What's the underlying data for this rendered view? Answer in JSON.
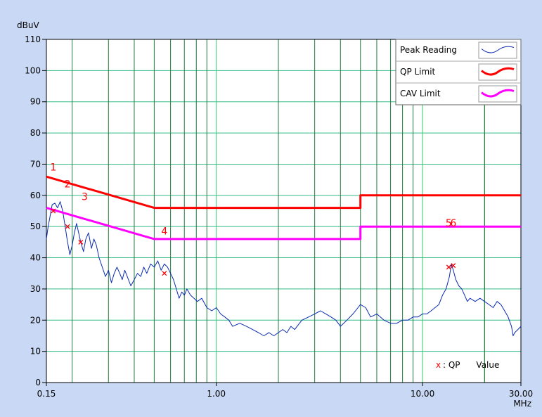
{
  "chart_data": {
    "type": "line",
    "ylabel": "dBuV",
    "xlabel": "MHz",
    "x_scale": "log",
    "xlim": [
      0.15,
      30
    ],
    "ylim": [
      0,
      110
    ],
    "yticks": [
      0,
      10,
      20,
      30,
      40,
      50,
      60,
      70,
      80,
      90,
      100,
      110
    ],
    "xtick_labels": [
      {
        "value": 0.15,
        "label": "0.15"
      },
      {
        "value": 1,
        "label": "1.00"
      },
      {
        "value": 10,
        "label": "10.00"
      },
      {
        "value": 30,
        "label": "30.00"
      }
    ],
    "grid": true,
    "legend_position": "top-right",
    "series": [
      {
        "name": "Peak Reading",
        "color": "#0a2bb0",
        "points": [
          [
            0.15,
            46
          ],
          [
            0.153,
            50
          ],
          [
            0.157,
            54
          ],
          [
            0.16,
            57
          ],
          [
            0.165,
            57.5
          ],
          [
            0.17,
            56
          ],
          [
            0.175,
            58
          ],
          [
            0.18,
            55
          ],
          [
            0.185,
            50
          ],
          [
            0.19,
            45
          ],
          [
            0.195,
            41
          ],
          [
            0.2,
            44
          ],
          [
            0.205,
            48
          ],
          [
            0.21,
            51
          ],
          [
            0.215,
            48
          ],
          [
            0.22,
            45
          ],
          [
            0.227,
            42
          ],
          [
            0.233,
            46
          ],
          [
            0.24,
            48
          ],
          [
            0.248,
            43
          ],
          [
            0.255,
            46
          ],
          [
            0.262,
            44
          ],
          [
            0.27,
            40
          ],
          [
            0.28,
            37
          ],
          [
            0.29,
            34
          ],
          [
            0.3,
            36
          ],
          [
            0.31,
            32
          ],
          [
            0.32,
            35
          ],
          [
            0.33,
            37
          ],
          [
            0.34,
            35
          ],
          [
            0.35,
            33
          ],
          [
            0.36,
            36
          ],
          [
            0.37,
            34
          ],
          [
            0.385,
            31
          ],
          [
            0.4,
            33
          ],
          [
            0.415,
            35
          ],
          [
            0.43,
            34
          ],
          [
            0.445,
            37
          ],
          [
            0.46,
            35
          ],
          [
            0.48,
            38
          ],
          [
            0.5,
            37
          ],
          [
            0.52,
            39
          ],
          [
            0.54,
            36
          ],
          [
            0.56,
            38
          ],
          [
            0.58,
            37
          ],
          [
            0.6,
            35
          ],
          [
            0.62,
            33
          ],
          [
            0.64,
            30
          ],
          [
            0.66,
            27
          ],
          [
            0.68,
            29
          ],
          [
            0.7,
            28
          ],
          [
            0.72,
            30
          ],
          [
            0.75,
            28
          ],
          [
            0.78,
            27
          ],
          [
            0.81,
            26
          ],
          [
            0.85,
            27
          ],
          [
            0.9,
            24
          ],
          [
            0.95,
            23
          ],
          [
            1.0,
            24
          ],
          [
            1.05,
            22
          ],
          [
            1.1,
            21
          ],
          [
            1.15,
            20
          ],
          [
            1.2,
            18
          ],
          [
            1.3,
            19
          ],
          [
            1.4,
            18
          ],
          [
            1.5,
            17
          ],
          [
            1.6,
            16
          ],
          [
            1.7,
            15
          ],
          [
            1.8,
            16
          ],
          [
            1.9,
            15
          ],
          [
            2.0,
            16
          ],
          [
            2.1,
            17
          ],
          [
            2.2,
            16
          ],
          [
            2.3,
            18
          ],
          [
            2.4,
            17
          ],
          [
            2.6,
            20
          ],
          [
            2.8,
            21
          ],
          [
            3.0,
            22
          ],
          [
            3.2,
            23
          ],
          [
            3.4,
            22
          ],
          [
            3.6,
            21
          ],
          [
            3.8,
            20
          ],
          [
            4.0,
            18
          ],
          [
            4.3,
            20
          ],
          [
            4.6,
            22
          ],
          [
            5.0,
            25
          ],
          [
            5.3,
            24
          ],
          [
            5.6,
            21
          ],
          [
            6.0,
            22
          ],
          [
            6.5,
            20
          ],
          [
            7.0,
            19
          ],
          [
            7.5,
            19
          ],
          [
            8.0,
            20
          ],
          [
            8.5,
            20
          ],
          [
            9.0,
            21
          ],
          [
            9.5,
            21
          ],
          [
            10.0,
            22
          ],
          [
            10.5,
            22
          ],
          [
            11.0,
            23
          ],
          [
            11.5,
            24
          ],
          [
            12.0,
            25
          ],
          [
            12.5,
            28
          ],
          [
            13.0,
            30
          ],
          [
            13.5,
            34
          ],
          [
            13.8,
            38
          ],
          [
            14.1,
            36
          ],
          [
            14.5,
            33
          ],
          [
            15.0,
            31
          ],
          [
            15.5,
            30
          ],
          [
            16.0,
            28
          ],
          [
            16.5,
            26
          ],
          [
            17.0,
            27
          ],
          [
            18.0,
            26
          ],
          [
            19.0,
            27
          ],
          [
            20.0,
            26
          ],
          [
            21.0,
            25
          ],
          [
            22.0,
            24
          ],
          [
            23.0,
            26
          ],
          [
            24.0,
            25
          ],
          [
            25.0,
            23
          ],
          [
            26.0,
            21
          ],
          [
            27.0,
            18
          ],
          [
            27.5,
            15
          ],
          [
            28.0,
            16
          ],
          [
            29.0,
            17
          ],
          [
            30.0,
            18
          ]
        ]
      },
      {
        "name": "QP Limit",
        "color": "#ff0000",
        "points": [
          [
            0.15,
            66
          ],
          [
            0.5,
            56
          ],
          [
            5.0,
            56
          ],
          [
            5.0,
            60
          ],
          [
            30.0,
            60
          ]
        ]
      },
      {
        "name": "CAV Limit",
        "color": "#ff00ff",
        "points": [
          [
            0.15,
            56
          ],
          [
            0.5,
            46
          ],
          [
            5.0,
            46
          ],
          [
            5.0,
            50
          ],
          [
            30.0,
            50
          ]
        ]
      }
    ],
    "markers": [
      {
        "label": "1",
        "x": 0.162,
        "y": 68
      },
      {
        "label": "2",
        "x": 0.19,
        "y": 62.5
      },
      {
        "label": "3",
        "x": 0.23,
        "y": 58.5
      },
      {
        "label": "4",
        "x": 0.56,
        "y": 47.5
      },
      {
        "label": "5",
        "x": 13.4,
        "y": 50
      },
      {
        "label": "6",
        "x": 14.1,
        "y": 50
      }
    ],
    "qp_points": [
      {
        "x": 0.162,
        "y": 55
      },
      {
        "x": 0.19,
        "y": 50
      },
      {
        "x": 0.22,
        "y": 45
      },
      {
        "x": 0.56,
        "y": 35
      },
      {
        "x": 13.4,
        "y": 37
      },
      {
        "x": 14.1,
        "y": 37.5
      }
    ],
    "qp_note": {
      "mark": "x",
      "text": ": QP      Value"
    }
  }
}
